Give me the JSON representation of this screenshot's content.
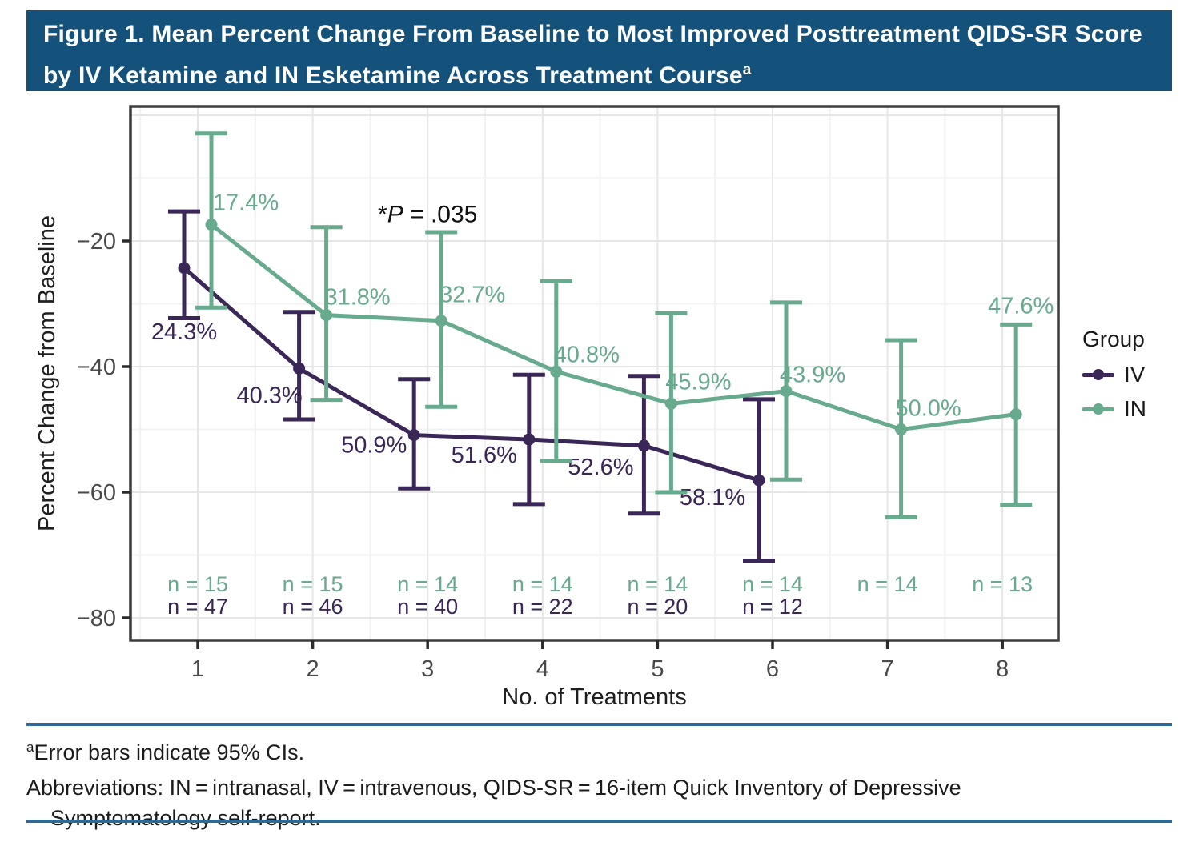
{
  "header": {
    "title": "Figure 1. Mean Percent Change From Baseline to Most Improved Posttreatment QIDS-SR Score by IV Ketamine and IN Esketamine Across Treatment Course",
    "title_superscript": "a"
  },
  "chart_data": {
    "type": "line",
    "x": [
      1,
      2,
      3,
      4,
      5,
      6,
      7,
      8
    ],
    "xlabel": "No. of Treatments",
    "ylabel": "Percent Change from Baseline",
    "ylim": [
      -84,
      1.5
    ],
    "yticks": [
      0,
      -20,
      -40,
      -60,
      -80
    ],
    "ytick_labels": [
      "",
      "−20",
      "−40",
      "−60",
      "−80"
    ],
    "yticks_minor": [
      -10,
      -30,
      -50,
      -70
    ],
    "grid": true,
    "legend": {
      "title": "Group",
      "position": "right",
      "entries": [
        {
          "label": "IV",
          "color": "#3A2657"
        },
        {
          "label": "IN",
          "color": "#67AA8E"
        }
      ]
    },
    "annotation": {
      "parts": [
        "*",
        "P",
        " = .035"
      ],
      "x": 3,
      "y": -16
    },
    "series": [
      {
        "name": "IV",
        "color": "#3A2657",
        "x": [
          1,
          2,
          3,
          4,
          5,
          6
        ],
        "values": [
          -24.3,
          -40.3,
          -50.9,
          -51.6,
          -52.6,
          -58.1
        ],
        "ci_low": [
          -32.3,
          -48.4,
          -59.4,
          -61.9,
          -63.4,
          -70.9
        ],
        "ci_high": [
          -15.3,
          -31.3,
          -42.0,
          -41.3,
          -41.5,
          -45.2
        ],
        "labels": [
          "24.3%",
          "40.3%",
          "50.9%",
          "51.6%",
          "52.6%",
          "58.1%"
        ],
        "n_labels": [
          "n = 47",
          "n = 46",
          "n = 40",
          "n = 22",
          "n = 20",
          "n = 12"
        ],
        "label_offsets": [
          [
            0,
            89
          ],
          [
            -37,
            43
          ],
          [
            -50,
            22
          ],
          [
            -56,
            29
          ],
          [
            -54,
            36
          ],
          [
            -58,
            31
          ]
        ],
        "dodge": -17
      },
      {
        "name": "IN",
        "color": "#67AA8E",
        "x": [
          1,
          2,
          3,
          4,
          5,
          6,
          7,
          8
        ],
        "values": [
          -17.4,
          -31.8,
          -32.7,
          -40.8,
          -45.9,
          -43.9,
          -50.0,
          -47.6
        ],
        "ci_low": [
          -30.6,
          -45.3,
          -46.4,
          -55.0,
          -60.0,
          -58.0,
          -64.0,
          -62.0
        ],
        "ci_high": [
          -2.9,
          -17.8,
          -18.6,
          -26.4,
          -31.5,
          -29.8,
          -35.8,
          -33.3
        ],
        "labels": [
          "17.4%",
          "31.8%",
          "32.7%",
          "40.8%",
          "45.9%",
          "43.9%",
          "50.0%",
          "47.6%"
        ],
        "n_labels": [
          "n = 15",
          "n = 15",
          "n = 14",
          "n = 14",
          "n = 14",
          "n = 14",
          "n = 14",
          "n = 13"
        ],
        "label_offsets": [
          [
            43,
            -18
          ],
          [
            39,
            -13
          ],
          [
            39,
            -23
          ],
          [
            38,
            -12
          ],
          [
            34,
            -18
          ],
          [
            33,
            -11
          ],
          [
            34,
            -17
          ],
          [
            6,
            -126
          ]
        ],
        "dodge": 17
      }
    ]
  },
  "footnotes": {
    "line1_superscript": "a",
    "line1": "Error bars indicate 95% CIs.",
    "line2": "Abbreviations: IN = intranasal, IV = intravenous, QIDS-SR = 16-item Quick Inventory of Depressive Symptomatology self-report."
  },
  "colors": {
    "banner_bg": "#15527B",
    "banner_text": "#FFFFFF",
    "iv": "#3A2657",
    "in": "#67AA8E",
    "rule": "#2E6A96",
    "panel_border": "#3C3C3C"
  }
}
